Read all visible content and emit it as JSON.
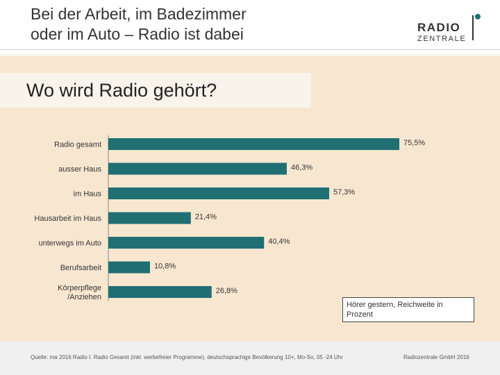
{
  "header": {
    "title_line1": "Bei der Arbeit, im Badezimmer",
    "title_line2": "oder im Auto – Radio ist dabei"
  },
  "logo": {
    "line1": "RADIO",
    "line2": "ZENTRALE"
  },
  "colors": {
    "bar": "#1f6f73",
    "background": "#f7e7d0",
    "banner": "#f8f3eb"
  },
  "chart_data": {
    "type": "bar",
    "orientation": "horizontal",
    "title": "Wo wird Radio gehört?",
    "categories": [
      "Radio gesamt",
      "ausser Haus",
      "im Haus",
      "Hausarbeit im Haus",
      "unterwegs im Auto",
      "Berufsarbeit",
      "Körperpflege /Anziehen"
    ],
    "category_lines": [
      [
        "Radio gesamt"
      ],
      [
        "ausser Haus"
      ],
      [
        "im Haus"
      ],
      [
        "Hausarbeit im Haus"
      ],
      [
        "unterwegs im Auto"
      ],
      [
        "Berufsarbeit"
      ],
      [
        "Körperpflege",
        "/Anziehen"
      ]
    ],
    "values": [
      75.5,
      46.3,
      57.3,
      21.4,
      40.4,
      10.8,
      26.8
    ],
    "value_labels": [
      "75,5%",
      "46,3%",
      "57,3%",
      "21,4%",
      "40,4%",
      "10,8%",
      "26,8%"
    ],
    "xlim": [
      0,
      100
    ],
    "unit": "%",
    "grid": false,
    "legend": "Hörer gestern, Reichweite in Prozent"
  },
  "footer": {
    "source": "Quelle: ma 2016 Radio I. Radio Gesamt (inkl. werbefreier Programme), deutschsprachige Bevölkerung 10+, Mo-So, 05 -24 Uhr",
    "copyright": "Radiozentrale GmbH 2016"
  }
}
